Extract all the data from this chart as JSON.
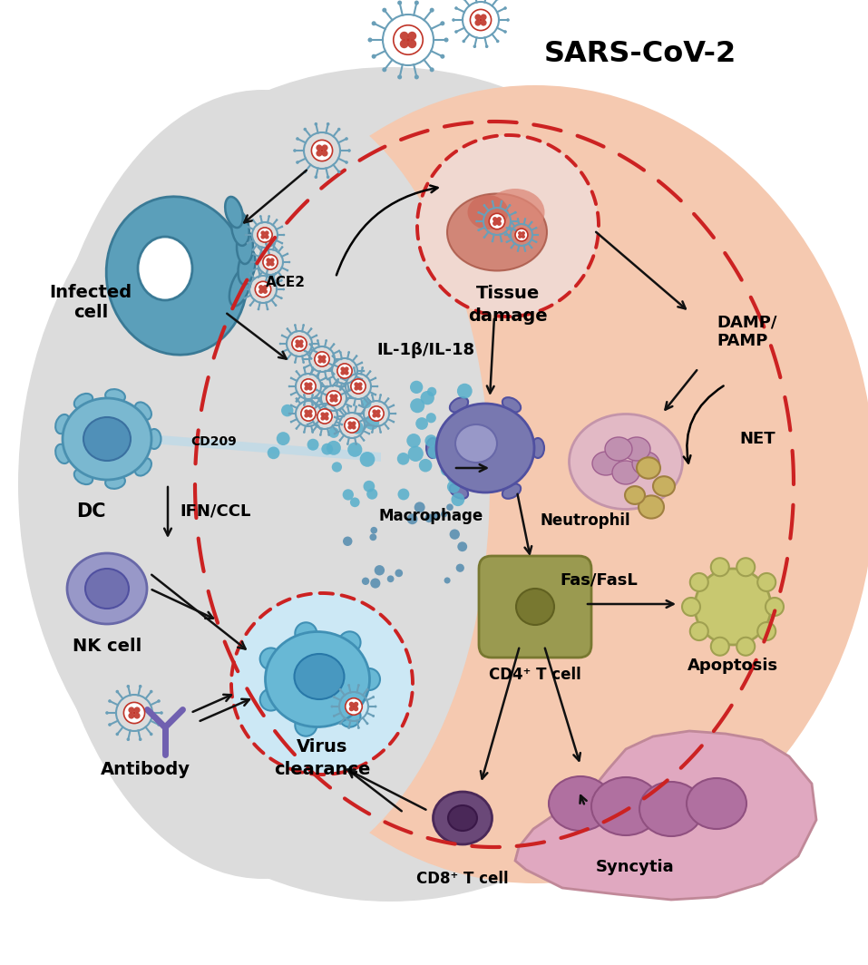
{
  "labels": {
    "sars": "SARS-CoV-2",
    "ace2": "ACE2",
    "infected": "Infected\ncell",
    "cd209": "CD209",
    "dc": "DC",
    "ifn": "IFN/CCL",
    "nk": "NK cell",
    "antibody": "Antibody",
    "virus_clear": "Virus\nclearance",
    "cd4": "CD4⁺ T cell",
    "cd8": "CD8⁺ T cell",
    "tissue": "Tissue\ndamage",
    "il": "IL-1β/IL-18",
    "damp": "DAMP/\nPAMP",
    "macrophage": "Macrophage",
    "neutrophil": "Neutrophil",
    "net": "NET",
    "fas": "Fas/FasL",
    "apoptosis": "Apoptosis",
    "syncytia": "Syncytia"
  },
  "colors": {
    "gray_bg": "#e0e0e0",
    "salmon_bg": "#f5c9b0",
    "cell_blue": "#5b9fba",
    "cell_blue_dark": "#3a7a96",
    "cell_blue_light": "#a8d4e8",
    "dc_blue": "#7ab8d0",
    "nk_purple": "#9898c8",
    "nk_purple_dark": "#7070b0",
    "macro_blue": "#7878a8",
    "macro_blue_dark": "#5858a0",
    "neutro_pink": "#e0b8c8",
    "neutro_pink_dark": "#c090a8",
    "cd4_olive": "#9a9a50",
    "cd4_olive_dark": "#787830",
    "cd8_purple": "#6a4878",
    "cd8_purple_dark": "#4a2858",
    "apo_yellow": "#c8c870",
    "apo_yellow_dark": "#a0a050",
    "sync_pink": "#e0a8b8",
    "sync_pink_dark": "#c08898",
    "tissue_pink": "#d08878",
    "virus_outer": "#6a9fb8",
    "virus_inner": "#c03428",
    "red_dash": "#cc2222",
    "arrow": "#111111",
    "dot_blue": "#5aa8c8",
    "dot_blue2": "#4888a8"
  }
}
